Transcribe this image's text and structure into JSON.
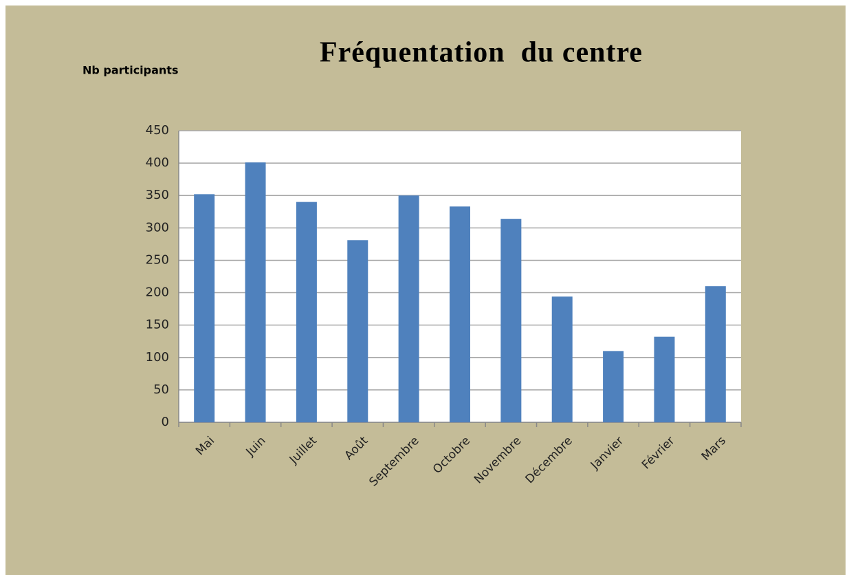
{
  "chart_data": {
    "type": "bar",
    "title": "Fréquentation  du centre",
    "y_label": "Nb participants",
    "categories": [
      "Mai",
      "Juin",
      "Juillet",
      "Août",
      "Septembre",
      "Octobre",
      "Novembre",
      "Décembre",
      "Janvier",
      "Février",
      "Mars"
    ],
    "values": [
      352,
      401,
      340,
      281,
      350,
      333,
      314,
      194,
      110,
      132,
      210
    ],
    "color": "#4f81bd",
    "ylim": [
      0,
      450
    ],
    "yticks": [
      0,
      50,
      100,
      150,
      200,
      250,
      300,
      350,
      400,
      450
    ],
    "grid": true
  }
}
